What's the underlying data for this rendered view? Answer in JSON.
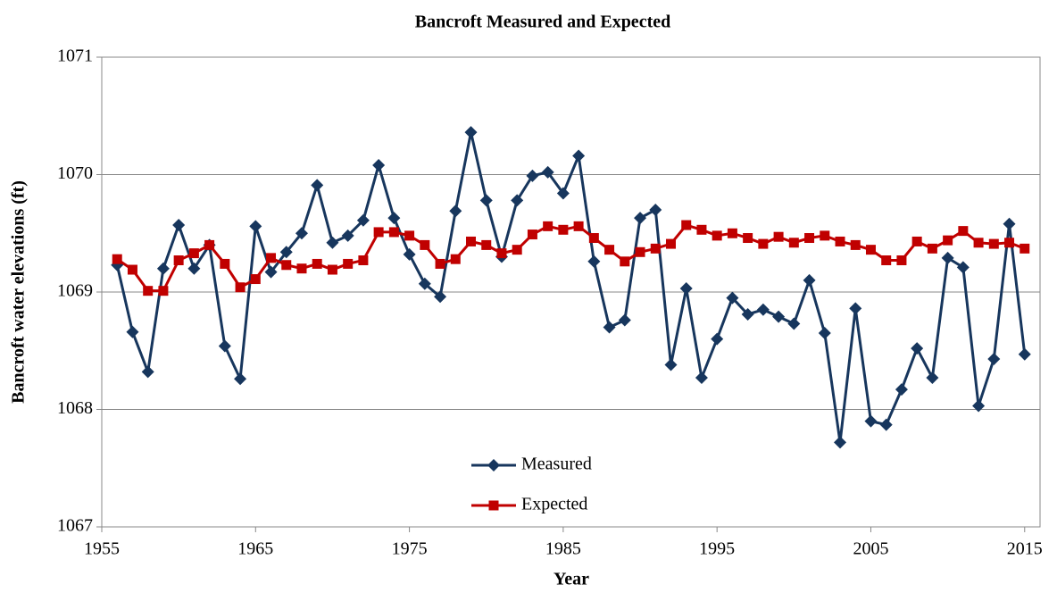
{
  "chart_data": {
    "type": "line",
    "title": "Bancroft Measured and Expected",
    "xlabel": "Year",
    "ylabel": "Bancroft  water elevations (ft)",
    "x": [
      1956,
      1957,
      1958,
      1959,
      1960,
      1961,
      1962,
      1963,
      1964,
      1965,
      1966,
      1967,
      1968,
      1969,
      1970,
      1971,
      1972,
      1973,
      1974,
      1975,
      1976,
      1977,
      1978,
      1979,
      1980,
      1981,
      1982,
      1983,
      1984,
      1985,
      1986,
      1987,
      1988,
      1989,
      1990,
      1991,
      1992,
      1993,
      1994,
      1995,
      1996,
      1997,
      1998,
      1999,
      2000,
      2001,
      2002,
      2003,
      2004,
      2005,
      2006,
      2007,
      2008,
      2009,
      2010,
      2011,
      2012,
      2013,
      2014,
      2015
    ],
    "series": [
      {
        "name": "Measured",
        "color": "#17365d",
        "marker": "diamond",
        "values": [
          1069.23,
          1068.66,
          1068.32,
          1069.2,
          1069.57,
          1069.2,
          1069.4,
          1068.54,
          1068.26,
          1069.56,
          1069.17,
          1069.34,
          1069.5,
          1069.91,
          1069.42,
          1069.48,
          1069.61,
          1070.08,
          1069.63,
          1069.32,
          1069.07,
          1068.96,
          1069.69,
          1070.36,
          1069.78,
          1069.3,
          1069.78,
          1069.99,
          1070.02,
          1069.84,
          1070.16,
          1069.26,
          1068.7,
          1068.76,
          1069.63,
          1069.7,
          1068.38,
          1069.03,
          1068.27,
          1068.6,
          1068.95,
          1068.81,
          1068.85,
          1068.79,
          1068.73,
          1069.1,
          1068.65,
          1067.72,
          1068.86,
          1067.9,
          1067.87,
          1068.17,
          1068.52,
          1068.27,
          1069.29,
          1069.21,
          1068.03,
          1068.43,
          1069.58,
          1068.47
        ]
      },
      {
        "name": "Expected",
        "color": "#c00000",
        "marker": "square",
        "values": [
          1069.28,
          1069.19,
          1069.01,
          1069.01,
          1069.27,
          1069.33,
          1069.4,
          1069.24,
          1069.04,
          1069.11,
          1069.29,
          1069.23,
          1069.2,
          1069.24,
          1069.19,
          1069.24,
          1069.27,
          1069.51,
          1069.51,
          1069.48,
          1069.4,
          1069.24,
          1069.28,
          1069.43,
          1069.4,
          1069.33,
          1069.36,
          1069.49,
          1069.56,
          1069.53,
          1069.56,
          1069.46,
          1069.36,
          1069.26,
          1069.34,
          1069.37,
          1069.41,
          1069.57,
          1069.53,
          1069.48,
          1069.5,
          1069.46,
          1069.41,
          1069.47,
          1069.42,
          1069.46,
          1069.48,
          1069.43,
          1069.4,
          1069.36,
          1069.27,
          1069.27,
          1069.43,
          1069.37,
          1069.44,
          1069.52,
          1069.42,
          1069.41,
          1069.42,
          1069.37
        ]
      }
    ],
    "xlim": [
      1955,
      2016
    ],
    "xticks": [
      1955,
      1965,
      1975,
      1985,
      1995,
      2005,
      2015
    ],
    "ylim": [
      1067,
      1071
    ],
    "yticks": [
      1067,
      1068,
      1069,
      1070,
      1071
    ],
    "grid": true,
    "legend": "bottom"
  }
}
